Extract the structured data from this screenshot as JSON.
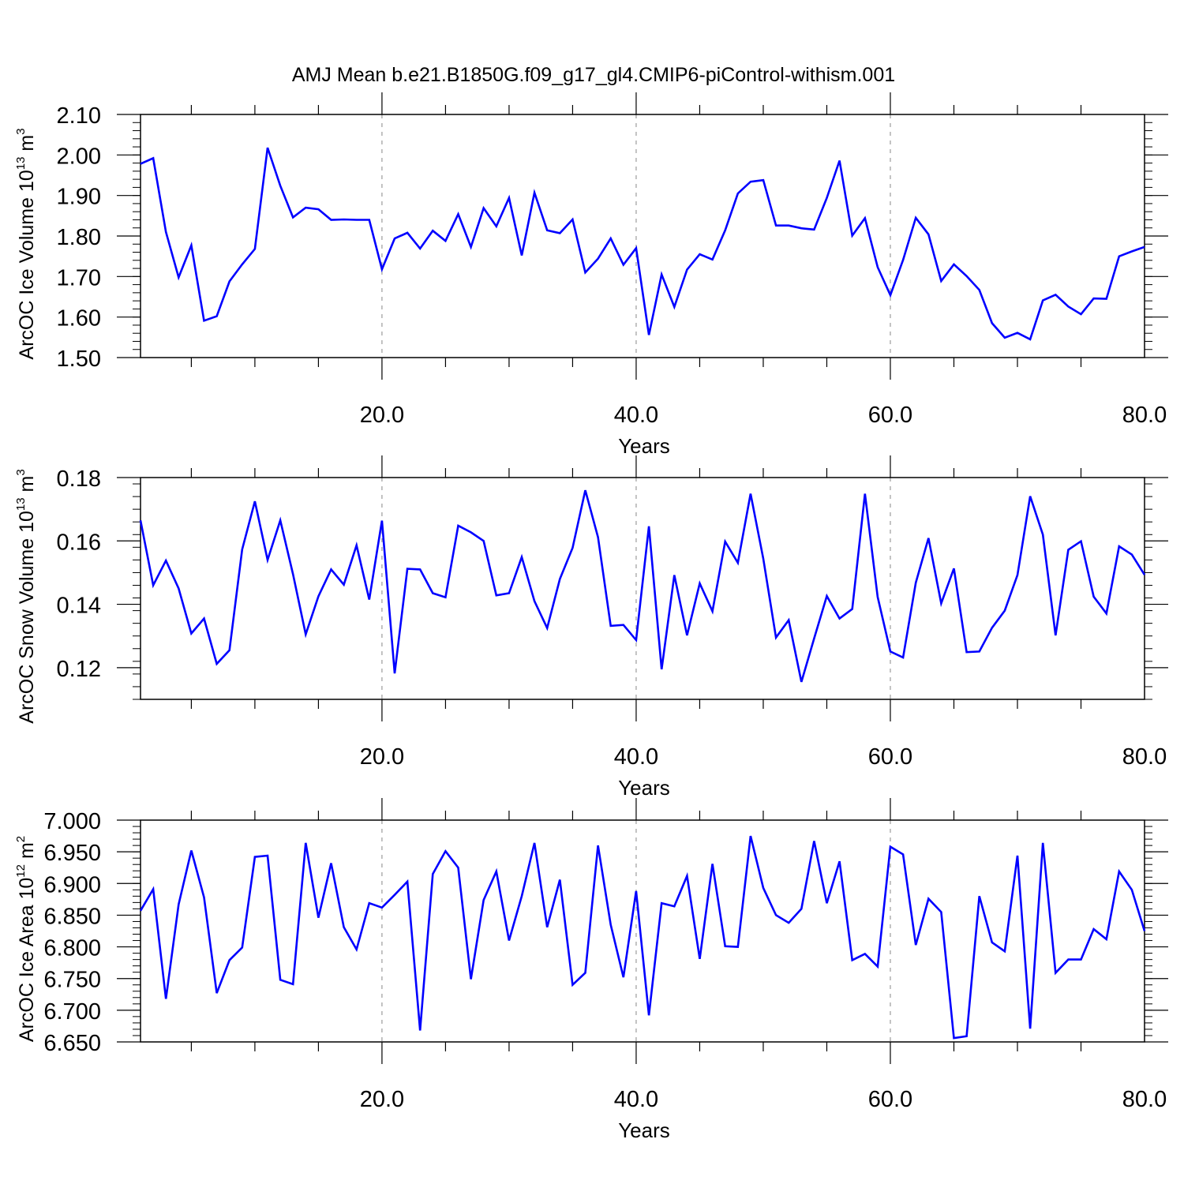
{
  "title": "AMJ Mean b.e21.B1850G.f09_g17_gl4.CMIP6-piControl-withism.001",
  "colors": {
    "line": "#0000ff",
    "axis": "#000000",
    "grid": "#888888"
  },
  "chart_data": [
    {
      "type": "line",
      "ylabel": {
        "base": "ArcOC Ice Volume 10",
        "exp": "13",
        "unit": " m",
        "unit_exp": "3"
      },
      "xlabel": "Years",
      "xlim": [
        1,
        80
      ],
      "ylim": [
        1.5,
        2.1
      ],
      "xticks": [
        20,
        40,
        60,
        80
      ],
      "xtick_labels": [
        "20.0",
        "40.0",
        "60.0",
        "80.0"
      ],
      "yticks": [
        1.5,
        1.6,
        1.7,
        1.8,
        1.9,
        2.0,
        2.1
      ],
      "ytick_labels": [
        "1.50",
        "1.60",
        "1.70",
        "1.80",
        "1.90",
        "2.00",
        "2.10"
      ],
      "grid": "vertical dashed at major x ticks",
      "x_start": 1,
      "values": [
        1.978,
        1.992,
        1.81,
        1.698,
        1.777,
        1.591,
        1.602,
        1.688,
        1.73,
        1.768,
        2.018,
        1.924,
        1.846,
        1.87,
        1.866,
        1.84,
        1.841,
        1.84,
        1.84,
        1.718,
        1.794,
        1.808,
        1.769,
        1.813,
        1.788,
        1.854,
        1.773,
        1.869,
        1.824,
        1.894,
        1.752,
        1.907,
        1.814,
        1.807,
        1.841,
        1.71,
        1.744,
        1.794,
        1.729,
        1.77,
        1.556,
        1.705,
        1.625,
        1.717,
        1.755,
        1.742,
        1.814,
        1.905,
        1.934,
        1.938,
        1.826,
        1.826,
        1.819,
        1.816,
        1.894,
        1.986,
        1.801,
        1.844,
        1.723,
        1.654,
        1.741,
        1.845,
        1.804,
        1.689,
        1.73,
        1.701,
        1.667,
        1.585,
        1.549,
        1.561,
        1.545,
        1.641,
        1.655,
        1.626,
        1.607,
        1.646,
        1.645,
        1.75,
        1.762,
        1.773
      ]
    },
    {
      "type": "line",
      "ylabel": {
        "base": "ArcOC Snow Volume 10",
        "exp": "13",
        "unit": " m",
        "unit_exp": "3"
      },
      "xlabel": "Years",
      "xlim": [
        1,
        80
      ],
      "ylim": [
        0.11,
        0.18
      ],
      "xticks": [
        20,
        40,
        60,
        80
      ],
      "xtick_labels": [
        "20.0",
        "40.0",
        "60.0",
        "80.0"
      ],
      "yticks": [
        0.12,
        0.14,
        0.16,
        0.18
      ],
      "ytick_labels": [
        "0.12",
        "0.14",
        "0.16",
        "0.18"
      ],
      "grid": "vertical dashed at major x ticks",
      "x_start": 1,
      "values": [
        0.1665,
        0.146,
        0.1538,
        0.145,
        0.1308,
        0.1355,
        0.1212,
        0.1255,
        0.1573,
        0.1725,
        0.154,
        0.1665,
        0.1495,
        0.1305,
        0.1425,
        0.151,
        0.1462,
        0.1586,
        0.1415,
        0.1664,
        0.1182,
        0.1512,
        0.151,
        0.1435,
        0.1422,
        0.1648,
        0.1627,
        0.16,
        0.1428,
        0.1435,
        0.1549,
        0.141,
        0.1325,
        0.148,
        0.1578,
        0.176,
        0.1612,
        0.1332,
        0.1335,
        0.1287,
        0.1646,
        0.1195,
        0.1492,
        0.1302,
        0.1466,
        0.1378,
        0.1598,
        0.1531,
        0.1749,
        0.1544,
        0.1295,
        0.135,
        0.1155,
        0.1292,
        0.1426,
        0.1355,
        0.1385,
        0.1749,
        0.1423,
        0.1251,
        0.1232,
        0.1468,
        0.1609,
        0.1403,
        0.1513,
        0.1249,
        0.1251,
        0.1326,
        0.138,
        0.1492,
        0.1741,
        0.162,
        0.1302,
        0.1572,
        0.1599,
        0.1424,
        0.1371,
        0.1583,
        0.1557,
        0.1493
      ]
    },
    {
      "type": "line",
      "ylabel": {
        "base": "ArcOC Ice Area 10",
        "exp": "12",
        "unit": " m",
        "unit_exp": "2"
      },
      "xlabel": "Years",
      "xlim": [
        1,
        80
      ],
      "ylim": [
        6.65,
        7.0
      ],
      "xticks": [
        20,
        40,
        60,
        80
      ],
      "xtick_labels": [
        "20.0",
        "40.0",
        "60.0",
        "80.0"
      ],
      "yticks": [
        6.65,
        6.7,
        6.75,
        6.8,
        6.85,
        6.9,
        6.95,
        7.0
      ],
      "ytick_labels": [
        "6.650",
        "6.700",
        "6.750",
        "6.800",
        "6.850",
        "6.900",
        "6.950",
        "7.000"
      ],
      "grid": "vertical dashed at major x ticks",
      "x_start": 1,
      "values": [
        6.857,
        6.891,
        6.718,
        6.867,
        6.952,
        6.878,
        6.727,
        6.779,
        6.799,
        6.942,
        6.944,
        6.748,
        6.741,
        6.964,
        6.846,
        6.932,
        6.831,
        6.796,
        6.869,
        6.862,
        6.882,
        6.903,
        6.668,
        6.915,
        6.951,
        6.925,
        6.749,
        6.874,
        6.919,
        6.81,
        6.88,
        6.964,
        6.831,
        6.906,
        6.74,
        6.759,
        6.96,
        6.835,
        6.752,
        6.888,
        6.692,
        6.869,
        6.864,
        6.912,
        6.781,
        6.931,
        6.801,
        6.8,
        6.975,
        6.893,
        6.85,
        6.838,
        6.86,
        6.967,
        6.869,
        6.935,
        6.779,
        6.789,
        6.769,
        6.958,
        6.946,
        6.803,
        6.876,
        6.855,
        6.656,
        6.659,
        6.88,
        6.807,
        6.793,
        6.944,
        6.671,
        6.964,
        6.759,
        6.78,
        6.78,
        6.828,
        6.812,
        6.919,
        6.89,
        6.825
      ]
    }
  ]
}
